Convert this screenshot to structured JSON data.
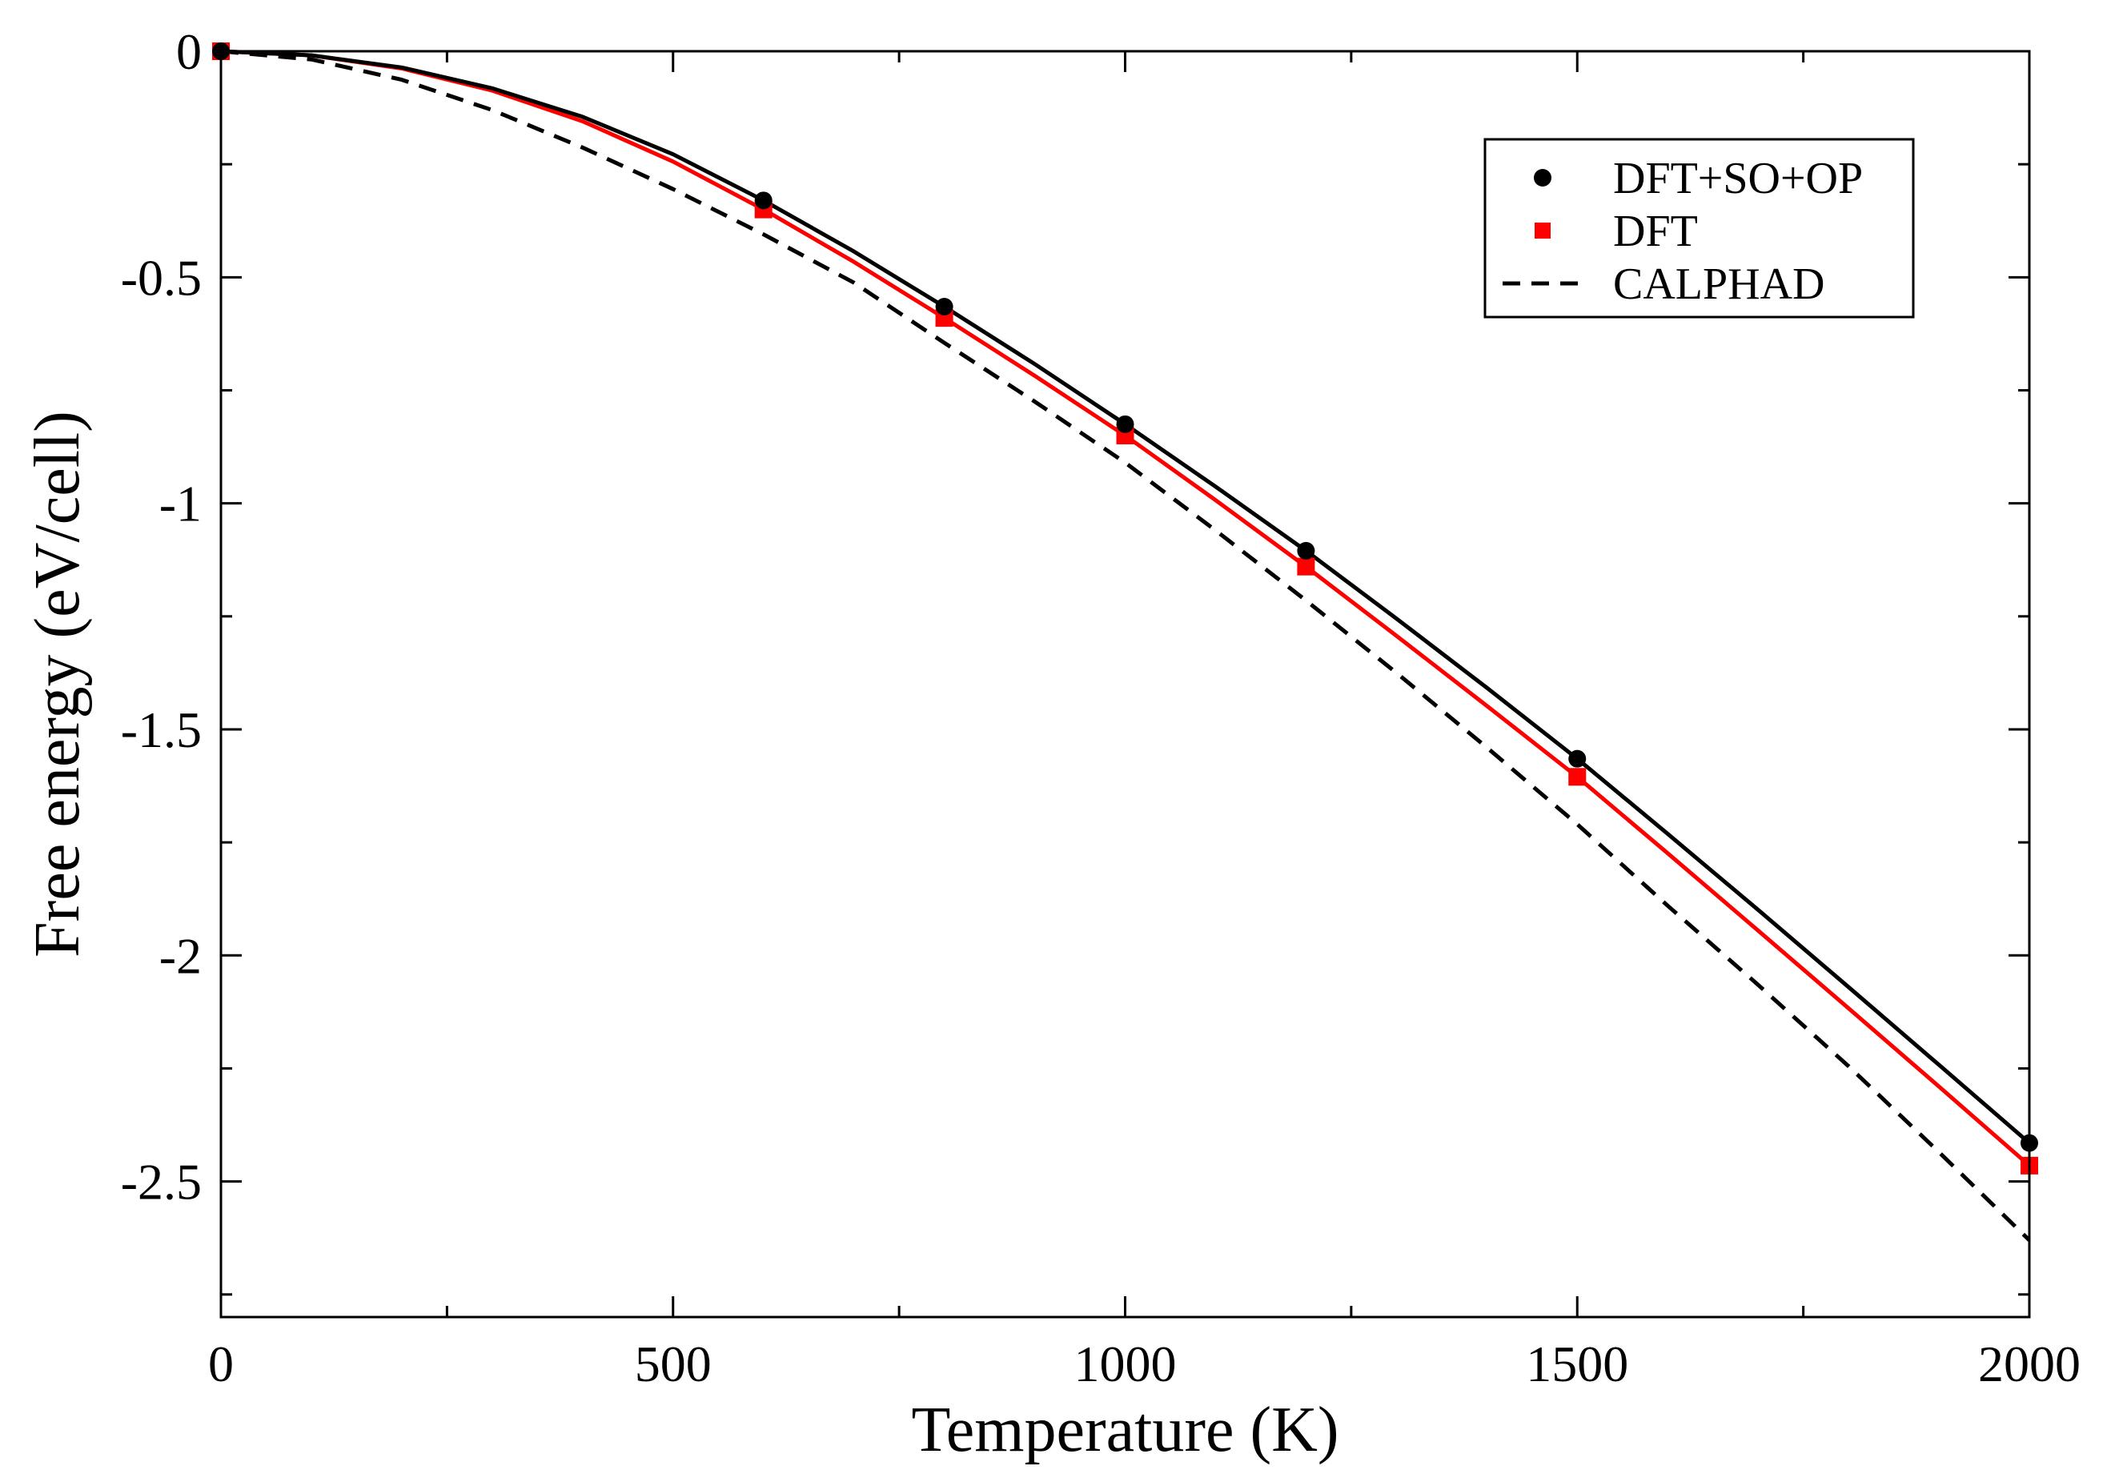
{
  "chart_data": {
    "type": "line",
    "title": "",
    "xlabel": "Temperature (K)",
    "ylabel": "Free energy (eV/cell)",
    "xlim": [
      0,
      2000
    ],
    "ylim": [
      -2.8,
      0
    ],
    "grid": false,
    "legend_position": "top-right",
    "x_major_ticks": [
      0,
      500,
      1000,
      1500,
      2000
    ],
    "x_tick_labels": [
      "0",
      "500",
      "1000",
      "1500",
      "2000"
    ],
    "x_minor_ticks": [
      250,
      750,
      1250,
      1750
    ],
    "y_major_ticks": [
      0,
      -0.5,
      -1,
      -1.5,
      -2,
      -2.5
    ],
    "y_tick_labels": [
      "0",
      "-0.5",
      "-1",
      "-1.5",
      "-2",
      "-2.5"
    ],
    "y_minor_ticks": [
      -0.25,
      -0.75,
      -1.25,
      -1.75,
      -2.25,
      -2.75
    ],
    "series": [
      {
        "name": "DFT+SO+OP",
        "color": "#000000",
        "marker": "circle",
        "line_style": "solid",
        "points": [
          {
            "x": 0,
            "y": 0
          },
          {
            "x": 600,
            "y": -0.33
          },
          {
            "x": 800,
            "y": -0.565
          },
          {
            "x": 1000,
            "y": -0.825
          },
          {
            "x": 1200,
            "y": -1.105
          },
          {
            "x": 1500,
            "y": -1.565
          },
          {
            "x": 2000,
            "y": -2.415
          }
        ],
        "curve": [
          {
            "x": 0,
            "y": 0
          },
          {
            "x": 100,
            "y": -0.009
          },
          {
            "x": 200,
            "y": -0.036
          },
          {
            "x": 300,
            "y": -0.082
          },
          {
            "x": 400,
            "y": -0.145
          },
          {
            "x": 500,
            "y": -0.228
          },
          {
            "x": 600,
            "y": -0.33
          },
          {
            "x": 700,
            "y": -0.443
          },
          {
            "x": 800,
            "y": -0.565
          },
          {
            "x": 900,
            "y": -0.692
          },
          {
            "x": 1000,
            "y": -0.825
          },
          {
            "x": 1100,
            "y": -0.963
          },
          {
            "x": 1200,
            "y": -1.105
          },
          {
            "x": 1300,
            "y": -1.255
          },
          {
            "x": 1400,
            "y": -1.408
          },
          {
            "x": 1500,
            "y": -1.565
          },
          {
            "x": 1600,
            "y": -1.731
          },
          {
            "x": 1700,
            "y": -1.899
          },
          {
            "x": 1800,
            "y": -2.07
          },
          {
            "x": 1900,
            "y": -2.242
          },
          {
            "x": 2000,
            "y": -2.415
          }
        ]
      },
      {
        "name": "DFT",
        "color": "#ff0000",
        "marker": "square",
        "line_style": "solid",
        "points": [
          {
            "x": 0,
            "y": 0
          },
          {
            "x": 600,
            "y": -0.35
          },
          {
            "x": 800,
            "y": -0.59
          },
          {
            "x": 1000,
            "y": -0.85
          },
          {
            "x": 1200,
            "y": -1.14
          },
          {
            "x": 1500,
            "y": -1.605
          },
          {
            "x": 2000,
            "y": -2.465
          }
        ],
        "curve": [
          {
            "x": 0,
            "y": 0
          },
          {
            "x": 100,
            "y": -0.009
          },
          {
            "x": 200,
            "y": -0.038
          },
          {
            "x": 300,
            "y": -0.087
          },
          {
            "x": 400,
            "y": -0.155
          },
          {
            "x": 500,
            "y": -0.244
          },
          {
            "x": 600,
            "y": -0.35
          },
          {
            "x": 700,
            "y": -0.466
          },
          {
            "x": 800,
            "y": -0.59
          },
          {
            "x": 900,
            "y": -0.718
          },
          {
            "x": 1000,
            "y": -0.85
          },
          {
            "x": 1100,
            "y": -0.993
          },
          {
            "x": 1200,
            "y": -1.14
          },
          {
            "x": 1300,
            "y": -1.293
          },
          {
            "x": 1400,
            "y": -1.448
          },
          {
            "x": 1500,
            "y": -1.605
          },
          {
            "x": 1600,
            "y": -1.774
          },
          {
            "x": 1700,
            "y": -1.945
          },
          {
            "x": 1800,
            "y": -2.117
          },
          {
            "x": 1900,
            "y": -2.29
          },
          {
            "x": 2000,
            "y": -2.465
          }
        ]
      },
      {
        "name": "CALPHAD",
        "color": "#000000",
        "marker": "none",
        "line_style": "dashed",
        "curve": [
          {
            "x": 0,
            "y": 0
          },
          {
            "x": 100,
            "y": -0.018
          },
          {
            "x": 200,
            "y": -0.063
          },
          {
            "x": 300,
            "y": -0.13
          },
          {
            "x": 400,
            "y": -0.213
          },
          {
            "x": 500,
            "y": -0.305
          },
          {
            "x": 600,
            "y": -0.405
          },
          {
            "x": 700,
            "y": -0.512
          },
          {
            "x": 800,
            "y": -0.645
          },
          {
            "x": 900,
            "y": -0.775
          },
          {
            "x": 1000,
            "y": -0.91
          },
          {
            "x": 1100,
            "y": -1.06
          },
          {
            "x": 1200,
            "y": -1.215
          },
          {
            "x": 1300,
            "y": -1.375
          },
          {
            "x": 1400,
            "y": -1.54
          },
          {
            "x": 1500,
            "y": -1.71
          },
          {
            "x": 1600,
            "y": -1.89
          },
          {
            "x": 1700,
            "y": -2.065
          },
          {
            "x": 1800,
            "y": -2.245
          },
          {
            "x": 1900,
            "y": -2.435
          },
          {
            "x": 2000,
            "y": -2.63
          }
        ]
      }
    ]
  }
}
